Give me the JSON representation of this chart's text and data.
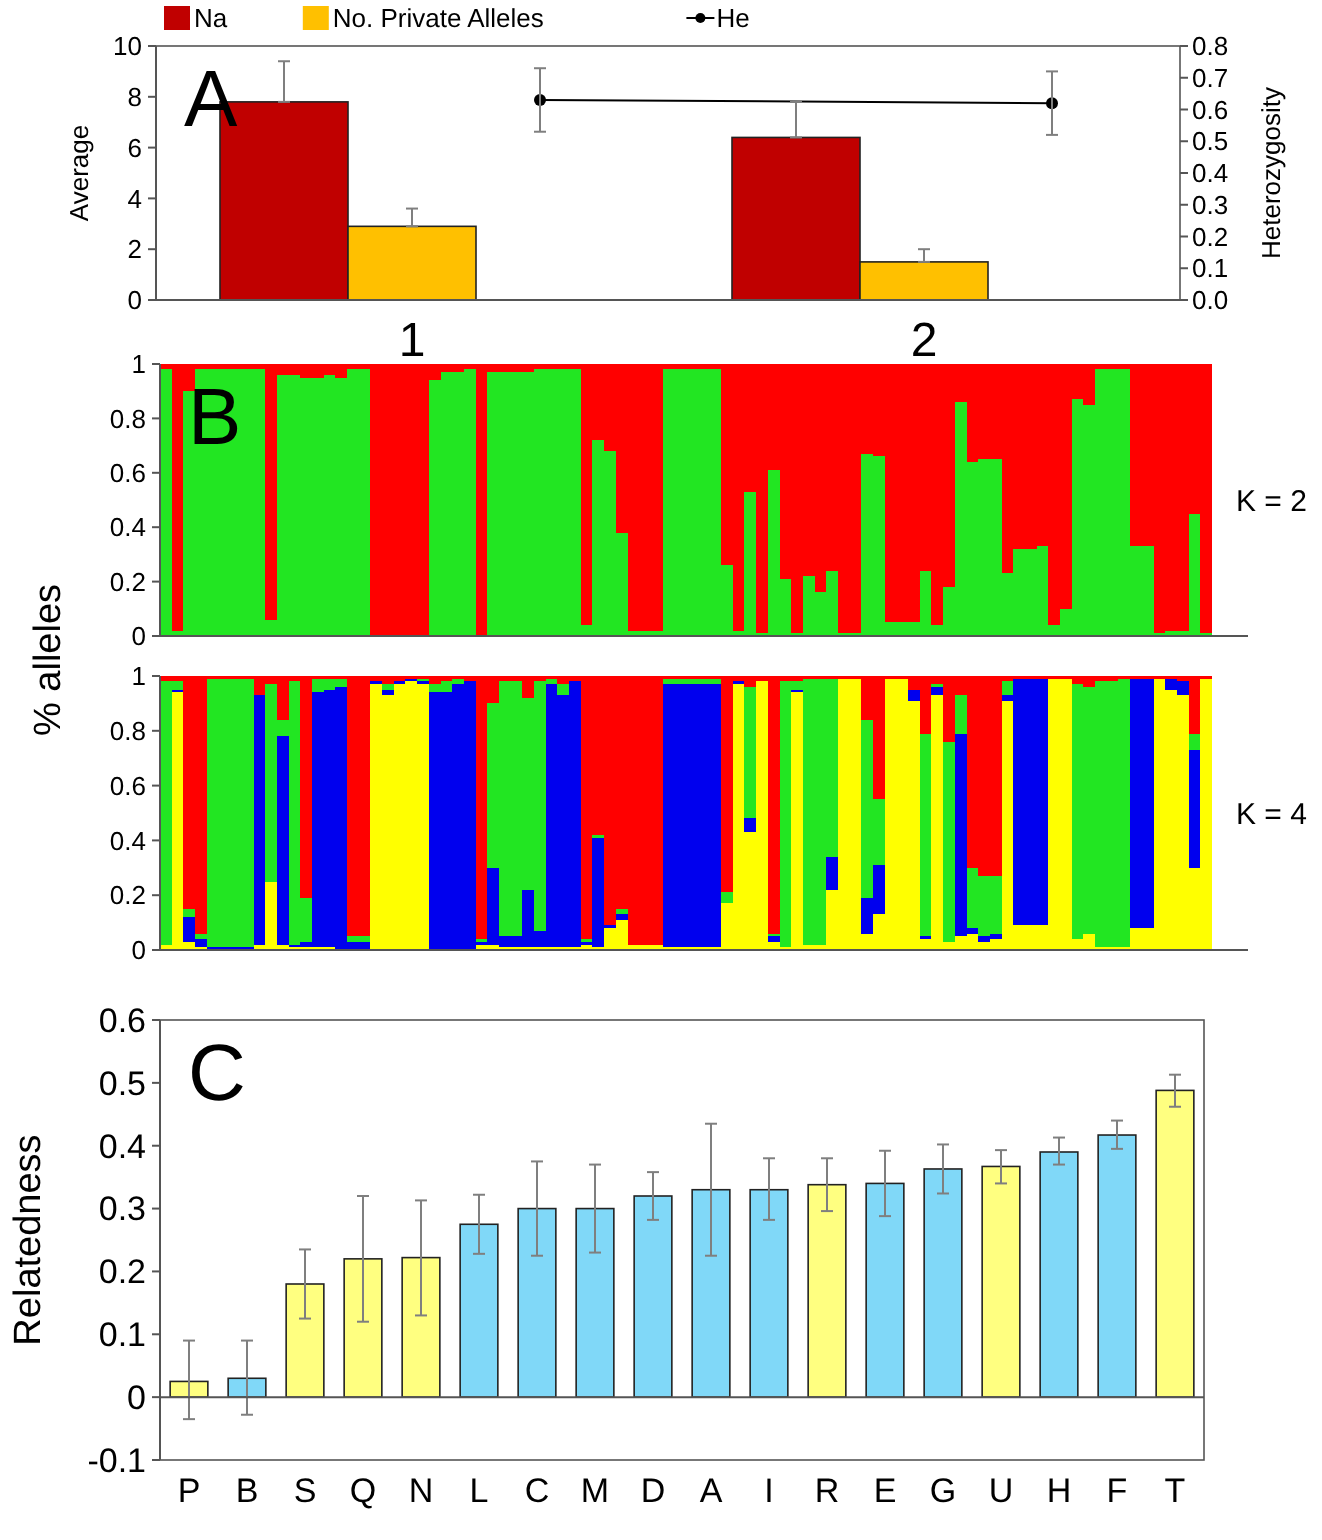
{
  "chart_data": [
    {
      "type": "bar",
      "categories": [
        "1",
        "2"
      ],
      "ylabel": "Average",
      "y2label": "Heterozygosity",
      "annotations": [
        "A"
      ],
      "legend": "top",
      "grid": false,
      "ylim": [
        0,
        10
      ],
      "yticks": [
        0,
        2,
        4,
        6,
        8,
        10
      ],
      "y2lim": [
        0,
        0.8
      ],
      "y2ticks": [
        {
          "value": 0,
          "label": "0.0"
        },
        {
          "value": 0.1,
          "label": "0.1"
        },
        {
          "value": 0.2,
          "label": "0.2"
        },
        {
          "value": 0.3,
          "label": "0.3"
        },
        {
          "value": 0.4,
          "label": "0.4"
        },
        {
          "value": 0.5,
          "label": "0.5"
        },
        {
          "value": 0.6,
          "label": "0.6"
        },
        {
          "value": 0.7,
          "label": "0.7"
        },
        {
          "value": 0.8,
          "label": "0.8"
        }
      ],
      "series": [
        {
          "name": "Na",
          "color": "#c00000",
          "values": [
            7.8,
            6.4
          ],
          "errors": [
            [
              7.8,
              9.4
            ],
            [
              6.4,
              7.8
            ]
          ]
        },
        {
          "name": "No. Private Alleles",
          "color": "#ffc000",
          "values": [
            2.9,
            1.5
          ],
          "errors": [
            [
              2.9,
              3.6
            ],
            [
              1.5,
              2.0
            ]
          ]
        },
        {
          "name": "He",
          "type": "line",
          "axis": "y2",
          "color": "#000000",
          "marker": "circle",
          "values": [
            0.63,
            0.62
          ],
          "errors": [
            0.1,
            0.1
          ]
        }
      ]
    },
    {
      "type": "bar",
      "stacked": true,
      "categories": [
        null,
        null,
        null,
        null,
        null,
        null,
        null,
        null,
        null,
        null,
        null,
        null,
        null,
        null,
        null,
        null,
        null,
        null,
        null,
        null,
        null,
        null,
        null,
        null,
        null,
        null,
        null,
        null,
        null,
        null,
        null,
        null,
        null,
        null,
        null,
        null,
        null,
        null,
        null,
        null,
        null,
        null,
        null,
        null,
        null,
        null,
        null,
        null,
        null,
        null,
        null,
        null,
        null,
        null,
        null,
        null,
        null,
        null,
        null,
        null,
        null,
        null,
        null,
        null,
        null,
        null,
        null,
        null,
        null,
        null,
        null,
        null,
        null,
        null,
        null,
        null,
        null,
        null,
        null,
        null,
        null,
        null,
        null,
        null,
        null,
        null,
        null,
        null,
        null,
        null
      ],
      "ylabel": "% alleles",
      "annotations": [
        "B",
        "K = 2"
      ],
      "tick_labels": "y",
      "ylim": [
        0,
        1
      ],
      "yticks": [
        0,
        0.2,
        0.4,
        0.6,
        0.8,
        1
      ],
      "series": [
        {
          "color": "#22e622",
          "values": [
            0.98,
            0.02,
            0.9,
            0.98,
            0.98,
            0.98,
            0.98,
            0.98,
            0.98,
            0.06,
            0.96,
            0.96,
            0.95,
            0.95,
            0.96,
            0.95,
            0.98,
            0.98,
            0,
            0,
            0,
            0,
            0,
            0.94,
            0.97,
            0.97,
            0.98,
            0,
            0.97,
            0.97,
            0.97,
            0.97,
            0.98,
            0.98,
            0.98,
            0.98,
            0.04,
            0.72,
            0.68,
            0.38,
            0.02,
            0.02,
            0.02,
            0.98,
            0.98,
            0.98,
            0.98,
            0.98,
            0.26,
            0.02,
            0.53,
            0.01,
            0.61,
            0.21,
            0.01,
            0.22,
            0.16,
            0.24,
            0.01,
            0.01,
            0.67,
            0.66,
            0.05,
            0.05,
            0.05,
            0.24,
            0.04,
            0.18,
            0.86,
            0.64,
            0.65,
            0.65,
            0.23,
            0.32,
            0.32,
            0.33,
            0.04,
            0.1,
            0.87,
            0.85,
            0.98,
            0.98,
            0.98,
            0.33,
            0.33,
            0.01,
            0.02,
            0.02,
            0.45,
            0.01
          ]
        },
        {
          "color": "#ff0000",
          "values": [
            0.02,
            0.98,
            0.1,
            0.02,
            0.02,
            0.02,
            0.02,
            0.02,
            0.02,
            0.94,
            0.04,
            0.04,
            0.05,
            0.05,
            0.04,
            0.05,
            0.02,
            0.02,
            1,
            1,
            1,
            1,
            1,
            0.06,
            0.03,
            0.03,
            0.02,
            1,
            0.03,
            0.03,
            0.03,
            0.03,
            0.02,
            0.02,
            0.02,
            0.02,
            0.96,
            0.28,
            0.32,
            0.62,
            0.98,
            0.98,
            0.98,
            0.02,
            0.02,
            0.02,
            0.02,
            0.02,
            0.74,
            0.98,
            0.47,
            0.99,
            0.39,
            0.79,
            0.99,
            0.78,
            0.84,
            0.76,
            0.99,
            0.99,
            0.33,
            0.34,
            0.95,
            0.95,
            0.95,
            0.76,
            0.96,
            0.82,
            0.14,
            0.36,
            0.35,
            0.35,
            0.77,
            0.68,
            0.68,
            0.67,
            0.96,
            0.9,
            0.13,
            0.15,
            0.02,
            0.02,
            0.02,
            0.67,
            0.67,
            0.99,
            0.98,
            0.98,
            0.55,
            0.99
          ]
        }
      ]
    },
    {
      "type": "bar",
      "stacked": true,
      "categories": [
        null,
        null,
        null,
        null,
        null,
        null,
        null,
        null,
        null,
        null,
        null,
        null,
        null,
        null,
        null,
        null,
        null,
        null,
        null,
        null,
        null,
        null,
        null,
        null,
        null,
        null,
        null,
        null,
        null,
        null,
        null,
        null,
        null,
        null,
        null,
        null,
        null,
        null,
        null,
        null,
        null,
        null,
        null,
        null,
        null,
        null,
        null,
        null,
        null,
        null,
        null,
        null,
        null,
        null,
        null,
        null,
        null,
        null,
        null,
        null,
        null,
        null,
        null,
        null,
        null,
        null,
        null,
        null,
        null,
        null,
        null,
        null,
        null,
        null,
        null,
        null,
        null,
        null,
        null,
        null,
        null,
        null,
        null,
        null,
        null,
        null,
        null,
        null,
        null,
        null
      ],
      "annotations": [
        "K = 4"
      ],
      "tick_labels": "y",
      "ylim": [
        0,
        1
      ],
      "yticks": [
        0,
        0.2,
        0.4,
        0.6,
        0.8,
        1
      ],
      "series": [
        {
          "color": "#ffff00",
          "values": [
            0.02,
            0.94,
            0.03,
            0.01,
            0,
            0,
            0,
            0,
            0.02,
            0.25,
            0.02,
            0.01,
            0.01,
            0.01,
            0.01,
            0,
            0,
            0,
            0.97,
            0.93,
            0.97,
            0.98,
            0.97,
            0,
            0,
            0,
            0,
            0.02,
            0.02,
            0.01,
            0.01,
            0.01,
            0.01,
            0.01,
            0.01,
            0.01,
            0.02,
            0.01,
            0.08,
            0.11,
            0.02,
            0.02,
            0.02,
            0.01,
            0.01,
            0.01,
            0.01,
            0.01,
            0.17,
            0.97,
            0.43,
            0.98,
            0.03,
            0.01,
            0.94,
            0.02,
            0.02,
            0.22,
            0.99,
            0.99,
            0.06,
            0.13,
            0.99,
            0.99,
            0.91,
            0.04,
            0.93,
            0.03,
            0.05,
            0.06,
            0.03,
            0.04,
            0.91,
            0.09,
            0.09,
            0.09,
            0.99,
            0.99,
            0.04,
            0.06,
            0.01,
            0.01,
            0.01,
            0.08,
            0.08,
            0.99,
            0.95,
            0.93,
            0.3,
            0.99
          ]
        },
        {
          "color": "#0000ee",
          "values": [
            0,
            0.01,
            0.09,
            0.03,
            0.01,
            0.01,
            0.01,
            0.01,
            0.91,
            0,
            0.76,
            0.01,
            0.02,
            0.93,
            0.94,
            0.96,
            0.03,
            0.03,
            0.01,
            0.02,
            0.01,
            0.01,
            0.01,
            0.94,
            0.94,
            0.97,
            0.98,
            0.01,
            0.28,
            0.04,
            0.04,
            0.21,
            0.06,
            0.96,
            0.92,
            0.97,
            0.01,
            0.4,
            0.01,
            0.02,
            0,
            0,
            0,
            0.96,
            0.96,
            0.96,
            0.96,
            0.96,
            0,
            0.01,
            0.05,
            0,
            0.02,
            0,
            0.01,
            0,
            0,
            0.12,
            0,
            0,
            0.13,
            0.18,
            0,
            0,
            0.04,
            0.01,
            0.03,
            0,
            0.74,
            0.02,
            0.02,
            0.02,
            0.02,
            0.9,
            0.9,
            0.9,
            0,
            0,
            0,
            0,
            0,
            0,
            0,
            0.91,
            0.91,
            0,
            0.04,
            0.05,
            0.43,
            0
          ]
        },
        {
          "color": "#22e622",
          "values": [
            0.96,
            0.03,
            0.03,
            0.02,
            0.98,
            0.98,
            0.98,
            0.98,
            0,
            0.72,
            0.06,
            0.96,
            0.16,
            0.05,
            0.04,
            0.03,
            0.02,
            0.02,
            0,
            0.02,
            0,
            0,
            0.01,
            0.03,
            0.04,
            0.02,
            0,
            0.01,
            0.6,
            0.93,
            0.93,
            0.7,
            0.91,
            0.02,
            0.04,
            0,
            0.01,
            0.01,
            0,
            0.02,
            0,
            0,
            0,
            0.02,
            0.02,
            0.02,
            0.02,
            0.02,
            0.04,
            0,
            0.48,
            0,
            0.01,
            0.97,
            0.03,
            0.97,
            0.97,
            0.65,
            0,
            0,
            0.65,
            0.24,
            0,
            0,
            0,
            0.74,
            0.01,
            0.73,
            0.14,
            0.22,
            0.22,
            0.21,
            0.05,
            0,
            0,
            0,
            0,
            0,
            0.93,
            0.9,
            0.97,
            0.97,
            0.98,
            0,
            0,
            0,
            0,
            0,
            0.06,
            0
          ]
        },
        {
          "color": "#ff0000",
          "values": [
            0.02,
            0.02,
            0.85,
            0.94,
            0.01,
            0.01,
            0.01,
            0.01,
            0.07,
            0.03,
            0.16,
            0.02,
            0.81,
            0.01,
            0.01,
            0.01,
            0.95,
            0.95,
            0.02,
            0.03,
            0.02,
            0.01,
            0.01,
            0.03,
            0.02,
            0.01,
            0.02,
            0.96,
            0.1,
            0.02,
            0.02,
            0.08,
            0.02,
            0.01,
            0.03,
            0.02,
            0.96,
            0.58,
            0.91,
            0.85,
            0.98,
            0.98,
            0.98,
            0.01,
            0.01,
            0.01,
            0.01,
            0.01,
            0.79,
            0.02,
            0.04,
            0.02,
            0.94,
            0.02,
            0.02,
            0.01,
            0.01,
            0.01,
            0.01,
            0.01,
            0.16,
            0.45,
            0.01,
            0.01,
            0.05,
            0.21,
            0.03,
            0.24,
            0.07,
            0.7,
            0.73,
            0.73,
            0.02,
            0.01,
            0.01,
            0.01,
            0.01,
            0.01,
            0.03,
            0.04,
            0.02,
            0.02,
            0.01,
            0.01,
            0.01,
            0.01,
            0.01,
            0.02,
            0.21,
            0.01
          ]
        }
      ]
    },
    {
      "type": "bar",
      "categories": [
        "P",
        "B",
        "S",
        "Q",
        "N",
        "L",
        "C",
        "M",
        "D",
        "A",
        "I",
        "R",
        "E",
        "G",
        "U",
        "H",
        "F",
        "T"
      ],
      "ylabel": "Relatedness",
      "annotations": [
        "C"
      ],
      "ylim": [
        -0.1,
        0.6
      ],
      "yticks": [
        -0.1,
        0,
        0.1,
        0.2,
        0.3,
        0.4,
        0.5,
        0.6
      ],
      "values": [
        0.025,
        0.03,
        0.18,
        0.22,
        0.222,
        0.275,
        0.3,
        0.3,
        0.32,
        0.33,
        0.33,
        0.338,
        0.34,
        0.363,
        0.367,
        0.39,
        0.417,
        0.488
      ],
      "errors": [
        [
          -0.035,
          0.09
        ],
        [
          -0.028,
          0.09
        ],
        [
          0.125,
          0.235
        ],
        [
          0.12,
          0.32
        ],
        [
          0.13,
          0.313
        ],
        [
          0.228,
          0.322
        ],
        [
          0.225,
          0.375
        ],
        [
          0.23,
          0.37
        ],
        [
          0.282,
          0.358
        ],
        [
          0.225,
          0.435
        ],
        [
          0.282,
          0.38
        ],
        [
          0.296,
          0.38
        ],
        [
          0.288,
          0.392
        ],
        [
          0.324,
          0.402
        ],
        [
          0.34,
          0.393
        ],
        [
          0.37,
          0.413
        ],
        [
          0.395,
          0.44
        ],
        [
          0.462,
          0.513
        ]
      ],
      "colors": [
        "#ffff80",
        "#80d8f8",
        "#ffff80",
        "#ffff80",
        "#ffff80",
        "#80d8f8",
        "#80d8f8",
        "#80d8f8",
        "#80d8f8",
        "#80d8f8",
        "#80d8f8",
        "#ffff80",
        "#80d8f8",
        "#80d8f8",
        "#ffff80",
        "#80d8f8",
        "#80d8f8",
        "#ffff80"
      ]
    }
  ]
}
